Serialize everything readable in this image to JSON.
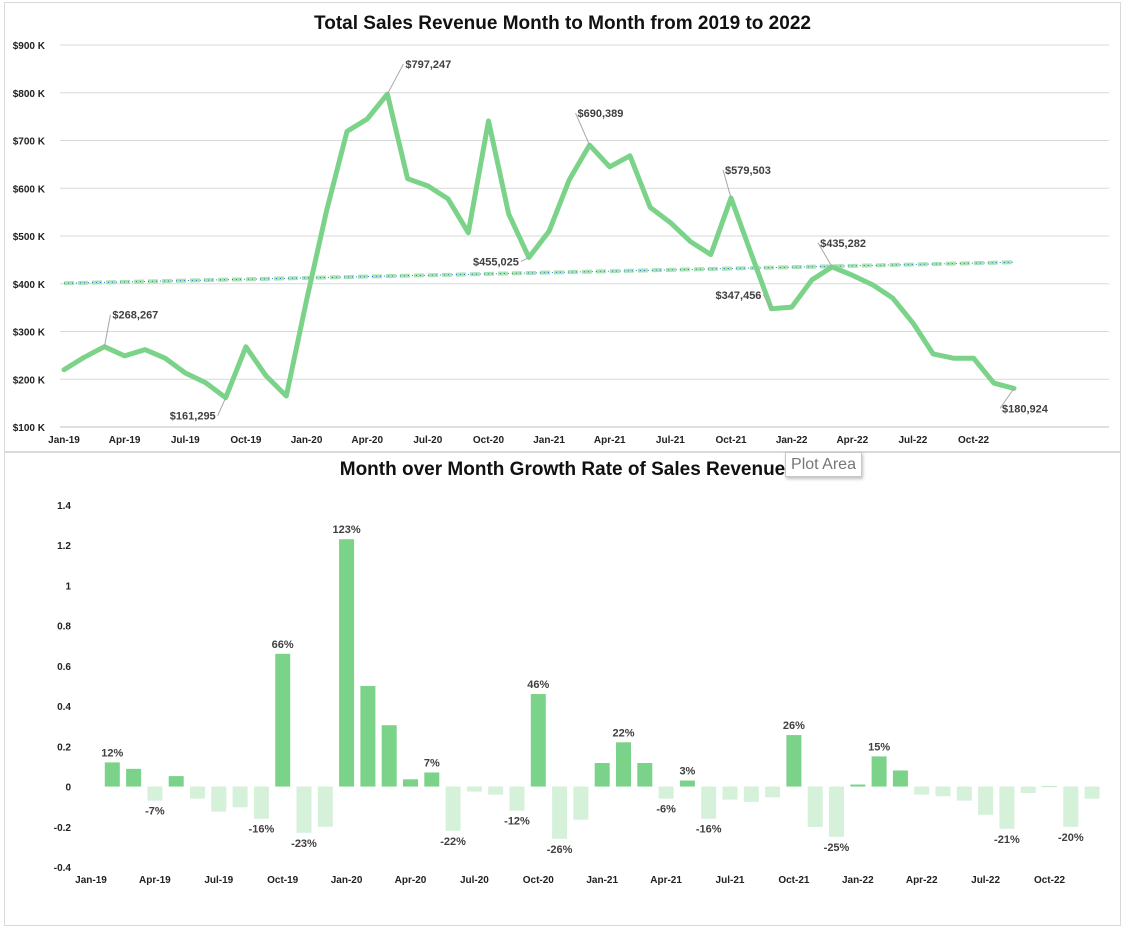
{
  "chart_data": [
    {
      "type": "line",
      "title": "Total Sales Revenue Month to Month from 2019 to 2022",
      "ylim": [
        100000,
        900000
      ],
      "y_ticks": [
        100000,
        200000,
        300000,
        400000,
        500000,
        600000,
        700000,
        800000,
        900000
      ],
      "y_tick_labels": [
        "$100 K",
        "$200 K",
        "$300 K",
        "$400 K",
        "$500 K",
        "$600 K",
        "$700 K",
        "$800 K",
        "$900 K"
      ],
      "x_tick_labels": [
        "Jan-19",
        "Apr-19",
        "Jul-19",
        "Oct-19",
        "Jan-20",
        "Apr-20",
        "Jul-20",
        "Oct-20",
        "Jan-21",
        "Apr-21",
        "Jul-21",
        "Oct-21",
        "Jan-22",
        "Apr-22",
        "Jul-22",
        "Oct-22"
      ],
      "grid": true,
      "colors": {
        "line": "#7bd389",
        "trend": "#a9e4b4",
        "trend_dots": "#2e75b6"
      },
      "series": [
        {
          "values": [
            220000,
            246000,
            268267,
            249000,
            262000,
            244000,
            213000,
            193000,
            161295,
            268000,
            207000,
            165000,
            366000,
            555000,
            719000,
            745000,
            797247,
            620000,
            605000,
            578000,
            507000,
            741000,
            546000,
            455025,
            510000,
            618000,
            690389,
            645000,
            668000,
            560000,
            528000,
            488000,
            461000,
            579503,
            463000,
            347456,
            351000,
            408000,
            435282,
            418000,
            398000,
            370000,
            318000,
            253000,
            244000,
            244000,
            192000,
            180924
          ]
        },
        {
          "trendline": true,
          "start": 401000,
          "end": 445000
        }
      ],
      "annotations": [
        {
          "index": 2,
          "label": "$268,267"
        },
        {
          "index": 8,
          "label": "$161,295"
        },
        {
          "index": 16,
          "label": "$797,247"
        },
        {
          "index": 23,
          "label": "$455,025"
        },
        {
          "index": 26,
          "label": "$690,389"
        },
        {
          "index": 33,
          "label": "$579,503"
        },
        {
          "index": 35,
          "label": "$347,456"
        },
        {
          "index": 38,
          "label": "$435,282"
        },
        {
          "index": 47,
          "label": "$180,924"
        }
      ]
    },
    {
      "type": "bar",
      "title": "Month over Month Growth Rate of Sales Revenue",
      "ylim": [
        -0.4,
        1.4
      ],
      "y_ticks": [
        -0.4,
        -0.2,
        0,
        0.2,
        0.4,
        0.6,
        0.8,
        1,
        1.2,
        1.4
      ],
      "y_tick_labels": [
        "-0.4",
        "-0.2",
        "0",
        "0.2",
        "0.4",
        "0.6",
        "0.8",
        "1",
        "1.2",
        "1.4"
      ],
      "x_tick_labels": [
        "Jan-19",
        "Apr-19",
        "Jul-19",
        "Oct-19",
        "Jan-20",
        "Apr-20",
        "Jul-20",
        "Oct-20",
        "Jan-21",
        "Apr-21",
        "Jul-21",
        "Oct-21",
        "Jan-22",
        "Apr-22",
        "Jul-22",
        "Oct-22"
      ],
      "grid": false,
      "colors": {
        "positive": "#7bd389",
        "negative": "#d5f1da"
      },
      "values": [
        0.12,
        0.088,
        -0.07,
        0.052,
        -0.06,
        -0.125,
        -0.103,
        -0.16,
        0.66,
        -0.23,
        -0.2,
        1.23,
        0.5,
        0.305,
        0.036,
        0.07,
        -0.22,
        -0.025,
        -0.04,
        -0.12,
        0.46,
        -0.26,
        -0.165,
        0.117,
        0.22,
        0.117,
        -0.06,
        0.03,
        -0.16,
        -0.065,
        -0.076,
        -0.054,
        0.256,
        -0.201,
        -0.25,
        0.01,
        0.15,
        0.08,
        -0.04,
        -0.048,
        -0.07,
        -0.14,
        -0.21,
        -0.032,
        0.0,
        -0.2,
        -0.06
      ],
      "data_labels": [
        {
          "index": 0,
          "label": "12%"
        },
        {
          "index": 2,
          "label": "-7%"
        },
        {
          "index": 7,
          "label": "-16%"
        },
        {
          "index": 8,
          "label": "66%"
        },
        {
          "index": 9,
          "label": "-23%"
        },
        {
          "index": 11,
          "label": "123%"
        },
        {
          "index": 15,
          "label": "7%"
        },
        {
          "index": 16,
          "label": "-22%"
        },
        {
          "index": 19,
          "label": "-12%"
        },
        {
          "index": 20,
          "label": "46%"
        },
        {
          "index": 21,
          "label": "-26%"
        },
        {
          "index": 24,
          "label": "22%"
        },
        {
          "index": 26,
          "label": "-6%"
        },
        {
          "index": 27,
          "label": "3%"
        },
        {
          "index": 28,
          "label": "-16%"
        },
        {
          "index": 32,
          "label": "26%"
        },
        {
          "index": 34,
          "label": "-25%"
        },
        {
          "index": 36,
          "label": "15%"
        },
        {
          "index": 42,
          "label": "-21%"
        },
        {
          "index": 45,
          "label": "-20%"
        }
      ]
    }
  ],
  "tooltip": {
    "text": "Plot Area"
  }
}
